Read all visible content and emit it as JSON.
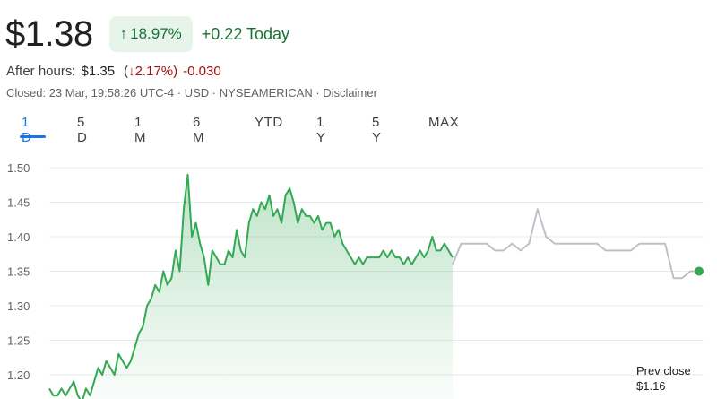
{
  "quote": {
    "price": "$1.38",
    "change_pct": "18.97%",
    "change_today": "+0.22 Today",
    "after_hours_label": "After hours:",
    "after_hours_price": "$1.35",
    "after_hours_pct_open": "(",
    "after_hours_pct": "2.17%)",
    "after_hours_change": "-0.030",
    "closed_line": "Closed: 23 Mar, 19:58:26 UTC-4 · USD · NYSEAMERICAN · Disclaimer"
  },
  "tabs": [
    {
      "label": "1 D",
      "active": true
    },
    {
      "label": "5 D"
    },
    {
      "label": "1 M"
    },
    {
      "label": "6 M"
    },
    {
      "label": "YTD"
    },
    {
      "label": "1 Y"
    },
    {
      "label": "5 Y"
    },
    {
      "label": "MAX"
    }
  ],
  "prev_close": {
    "label": "Prev close",
    "value": "$1.16"
  },
  "colors": {
    "up": "#137333",
    "line": "#34a853",
    "after_hours_line": "#bdc1c6",
    "accent": "#1a73e8"
  },
  "chart_data": {
    "type": "line",
    "y_ticks": [
      "1.50",
      "1.45",
      "1.40",
      "1.35",
      "1.30",
      "1.25",
      "1.20"
    ],
    "ylim": [
      1.18,
      1.52
    ],
    "grid": true,
    "series": [
      {
        "segment": "regular",
        "values": [
          1.18,
          1.17,
          1.17,
          1.18,
          1.17,
          1.18,
          1.19,
          1.17,
          1.16,
          1.18,
          1.17,
          1.19,
          1.21,
          1.2,
          1.22,
          1.21,
          1.2,
          1.23,
          1.22,
          1.21,
          1.22,
          1.24,
          1.26,
          1.27,
          1.3,
          1.31,
          1.33,
          1.32,
          1.35,
          1.33,
          1.34,
          1.38,
          1.35,
          1.44,
          1.49,
          1.4,
          1.42,
          1.39,
          1.37,
          1.33,
          1.38,
          1.37,
          1.36,
          1.36,
          1.38,
          1.37,
          1.41,
          1.38,
          1.37,
          1.42,
          1.44,
          1.43,
          1.45,
          1.44,
          1.46,
          1.43,
          1.44,
          1.42,
          1.46,
          1.47,
          1.45,
          1.42,
          1.44,
          1.43,
          1.43,
          1.42,
          1.43,
          1.41,
          1.42,
          1.42,
          1.4,
          1.41,
          1.39,
          1.38,
          1.37,
          1.36,
          1.37,
          1.36,
          1.37,
          1.37,
          1.37,
          1.37,
          1.38,
          1.37,
          1.38,
          1.37,
          1.37,
          1.36,
          1.37,
          1.36,
          1.37,
          1.38,
          1.37,
          1.38,
          1.4,
          1.38,
          1.38,
          1.39,
          1.38,
          1.37
        ]
      },
      {
        "segment": "after_hours",
        "values": [
          1.36,
          1.39,
          1.39,
          1.39,
          1.39,
          1.38,
          1.38,
          1.39,
          1.38,
          1.39,
          1.44,
          1.4,
          1.39,
          1.39,
          1.39,
          1.39,
          1.39,
          1.39,
          1.38,
          1.38,
          1.38,
          1.38,
          1.39,
          1.39,
          1.39,
          1.39,
          1.34,
          1.34,
          1.35,
          1.35
        ]
      }
    ]
  }
}
